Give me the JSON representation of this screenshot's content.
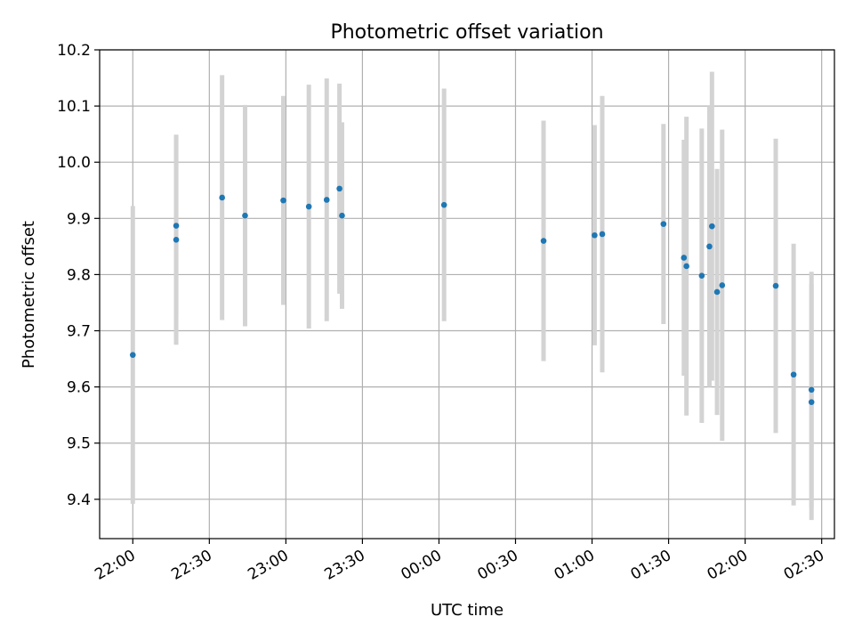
{
  "chart_data": {
    "type": "scatter",
    "title": "Photometric offset variation",
    "xlabel": "UTC time",
    "ylabel": "Photometric offset",
    "xlim": [
      "21:47",
      "02:35"
    ],
    "ylim": [
      9.33,
      10.2
    ],
    "x_ticks": [
      "22:00",
      "22:30",
      "23:00",
      "23:30",
      "00:00",
      "00:30",
      "01:00",
      "01:30",
      "02:00",
      "02:30"
    ],
    "y_ticks": [
      "9.4",
      "9.5",
      "9.6",
      "9.7",
      "9.8",
      "9.9",
      "10.0",
      "10.1",
      "10.2"
    ],
    "grid": true,
    "colors": {
      "point": "#1f77b4",
      "errorbar": "#d3d3d3",
      "grid": "#b0b0b0"
    },
    "points": [
      {
        "x": "22:00",
        "y": 9.657,
        "err": 0.265
      },
      {
        "x": "22:17",
        "y": 9.862,
        "err": 0.187
      },
      {
        "x": "22:17",
        "y": 9.887,
        "err": 0.16
      },
      {
        "x": "22:35",
        "y": 9.937,
        "err": 0.218
      },
      {
        "x": "22:44",
        "y": 9.905,
        "err": 0.197
      },
      {
        "x": "22:59",
        "y": 9.932,
        "err": 0.186
      },
      {
        "x": "23:09",
        "y": 9.921,
        "err": 0.217
      },
      {
        "x": "23:16",
        "y": 9.933,
        "err": 0.216
      },
      {
        "x": "23:21",
        "y": 9.953,
        "err": 0.187
      },
      {
        "x": "23:22",
        "y": 9.905,
        "err": 0.166
      },
      {
        "x": "00:02",
        "y": 9.924,
        "err": 0.207
      },
      {
        "x": "00:41",
        "y": 9.86,
        "err": 0.214
      },
      {
        "x": "01:01",
        "y": 9.87,
        "err": 0.196
      },
      {
        "x": "01:04",
        "y": 9.872,
        "err": 0.246
      },
      {
        "x": "01:28",
        "y": 9.89,
        "err": 0.178
      },
      {
        "x": "01:36",
        "y": 9.83,
        "err": 0.21
      },
      {
        "x": "01:37",
        "y": 9.815,
        "err": 0.266
      },
      {
        "x": "01:43",
        "y": 9.798,
        "err": 0.262
      },
      {
        "x": "01:46",
        "y": 9.85,
        "err": 0.25
      },
      {
        "x": "01:47",
        "y": 9.886,
        "err": 0.275
      },
      {
        "x": "01:49",
        "y": 9.769,
        "err": 0.219
      },
      {
        "x": "01:51",
        "y": 9.781,
        "err": 0.277
      },
      {
        "x": "02:12",
        "y": 9.78,
        "err": 0.262
      },
      {
        "x": "02:19",
        "y": 9.622,
        "err": 0.233
      },
      {
        "x": "02:26",
        "y": 9.595,
        "err": 0.21
      },
      {
        "x": "02:26",
        "y": 9.573,
        "err": 0.21
      }
    ]
  }
}
